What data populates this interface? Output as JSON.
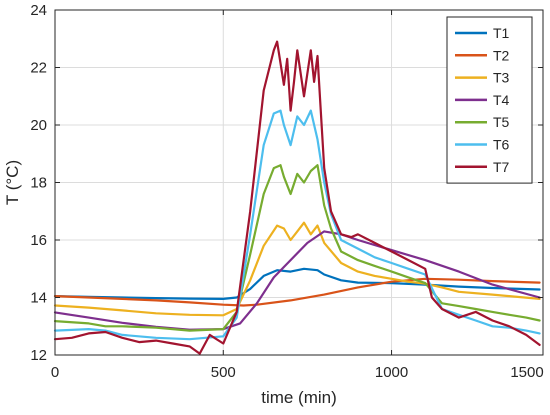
{
  "chart_data": {
    "type": "line",
    "xlabel": "time (min)",
    "ylabel": "T (°C)",
    "xlim": [
      0,
      1450
    ],
    "ylim": [
      12,
      24
    ],
    "xticks": [
      0,
      500,
      1000,
      1500
    ],
    "yticks": [
      12,
      14,
      16,
      18,
      20,
      22,
      24
    ],
    "grid": true,
    "legend_position": "top-right",
    "series": [
      {
        "name": "T1",
        "color": "#0072BD",
        "x": [
          0,
          100,
          200,
          300,
          400,
          500,
          540,
          580,
          620,
          660,
          700,
          740,
          780,
          800,
          850,
          900,
          1000,
          1100,
          1200,
          1300,
          1440
        ],
        "y": [
          14.05,
          14.02,
          14.0,
          13.98,
          13.96,
          13.95,
          14.0,
          14.3,
          14.75,
          14.95,
          14.9,
          15.0,
          14.95,
          14.8,
          14.6,
          14.52,
          14.5,
          14.45,
          14.38,
          14.33,
          14.28
        ]
      },
      {
        "name": "T2",
        "color": "#D95319",
        "x": [
          0,
          100,
          200,
          300,
          400,
          500,
          560,
          600,
          700,
          800,
          900,
          1000,
          1100,
          1200,
          1300,
          1440
        ],
        "y": [
          14.05,
          14.0,
          13.95,
          13.9,
          13.83,
          13.75,
          13.72,
          13.75,
          13.9,
          14.1,
          14.35,
          14.55,
          14.65,
          14.62,
          14.57,
          14.52
        ]
      },
      {
        "name": "T3",
        "color": "#EDB120",
        "x": [
          0,
          100,
          200,
          300,
          400,
          500,
          540,
          580,
          620,
          660,
          680,
          700,
          720,
          740,
          760,
          780,
          800,
          850,
          900,
          950,
          1000,
          1050,
          1100,
          1150,
          1200,
          1300,
          1440
        ],
        "y": [
          13.72,
          13.65,
          13.55,
          13.45,
          13.4,
          13.38,
          13.6,
          14.6,
          15.8,
          16.5,
          16.4,
          16.0,
          16.3,
          16.6,
          16.2,
          16.5,
          15.9,
          15.2,
          14.9,
          14.75,
          14.65,
          14.55,
          14.48,
          14.35,
          14.2,
          14.1,
          13.95
        ]
      },
      {
        "name": "T4",
        "color": "#7E2F8E",
        "x": [
          0,
          100,
          200,
          300,
          400,
          500,
          550,
          600,
          650,
          700,
          750,
          800,
          850,
          900,
          1000,
          1100,
          1200,
          1300,
          1440
        ],
        "y": [
          13.48,
          13.3,
          13.12,
          12.98,
          12.88,
          12.9,
          13.1,
          13.8,
          14.7,
          15.3,
          15.9,
          16.3,
          16.2,
          16.0,
          15.65,
          15.3,
          14.9,
          14.45,
          14.0
        ]
      },
      {
        "name": "T5",
        "color": "#77AC30",
        "x": [
          0,
          100,
          150,
          200,
          300,
          400,
          500,
          540,
          580,
          620,
          650,
          670,
          680,
          700,
          720,
          740,
          760,
          780,
          800,
          820,
          850,
          900,
          950,
          1000,
          1050,
          1100,
          1150,
          1200,
          1250,
          1300,
          1350,
          1400,
          1440
        ],
        "y": [
          13.18,
          13.1,
          13.0,
          13.0,
          12.95,
          12.85,
          12.9,
          13.5,
          15.5,
          17.6,
          18.5,
          18.6,
          18.2,
          17.6,
          18.3,
          18.0,
          18.4,
          18.6,
          17.2,
          16.4,
          15.6,
          15.3,
          15.1,
          14.9,
          14.7,
          14.5,
          13.8,
          13.7,
          13.6,
          13.5,
          13.4,
          13.3,
          13.2
        ]
      },
      {
        "name": "T6",
        "color": "#4DBEEE",
        "x": [
          0,
          100,
          150,
          200,
          300,
          400,
          500,
          540,
          580,
          620,
          650,
          670,
          680,
          700,
          720,
          740,
          760,
          780,
          800,
          820,
          850,
          900,
          950,
          1000,
          1050,
          1100,
          1150,
          1200,
          1250,
          1300,
          1350,
          1400,
          1440
        ],
        "y": [
          12.85,
          12.9,
          12.85,
          12.7,
          12.6,
          12.55,
          12.65,
          13.3,
          16.2,
          19.3,
          20.4,
          20.5,
          20.0,
          19.3,
          20.3,
          20.0,
          20.5,
          19.5,
          18.0,
          16.9,
          16.0,
          15.7,
          15.4,
          15.2,
          15.0,
          14.8,
          13.6,
          13.4,
          13.2,
          13.0,
          12.95,
          12.85,
          12.75
        ]
      },
      {
        "name": "T7",
        "color": "#A2142F",
        "x": [
          0,
          50,
          100,
          150,
          200,
          250,
          300,
          350,
          400,
          430,
          460,
          500,
          540,
          580,
          620,
          650,
          660,
          680,
          690,
          700,
          710,
          720,
          740,
          760,
          770,
          780,
          800,
          820,
          850,
          880,
          900,
          950,
          1000,
          1050,
          1100,
          1120,
          1150,
          1200,
          1250,
          1300,
          1350,
          1400,
          1440
        ],
        "y": [
          12.55,
          12.6,
          12.75,
          12.8,
          12.6,
          12.45,
          12.5,
          12.4,
          12.3,
          12.05,
          12.7,
          12.4,
          13.5,
          17.0,
          21.2,
          22.6,
          22.9,
          21.4,
          22.3,
          20.5,
          21.5,
          22.6,
          21.0,
          22.6,
          21.5,
          22.4,
          18.5,
          17.0,
          16.2,
          16.1,
          16.2,
          15.9,
          15.6,
          15.3,
          15.0,
          14.0,
          13.6,
          13.3,
          13.5,
          13.2,
          13.0,
          12.7,
          12.35
        ]
      }
    ]
  }
}
